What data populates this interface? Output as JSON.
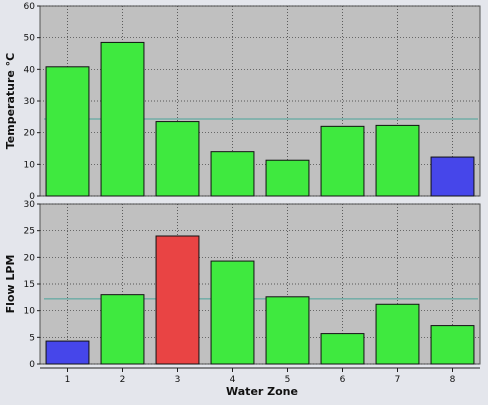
{
  "chart_data": [
    {
      "type": "bar",
      "ylabel": "Temperature °C",
      "xlabel": "",
      "categories": [
        "1",
        "2",
        "3",
        "4",
        "5",
        "6",
        "7",
        "8"
      ],
      "values": [
        40.8,
        48.5,
        23.5,
        14.0,
        11.3,
        22.0,
        22.3,
        12.3
      ],
      "bar_colors": [
        "#3fe93f",
        "#3fe93f",
        "#3fe93f",
        "#3fe93f",
        "#3fe93f",
        "#3fe93f",
        "#3fe93f",
        "#4646ea"
      ],
      "reference_line": 24.3,
      "ylim": [
        0,
        60
      ],
      "yticks": [
        0,
        10,
        20,
        30,
        40,
        50,
        60
      ],
      "grid": true
    },
    {
      "type": "bar",
      "ylabel": "Flow LPM",
      "xlabel": "Water Zone",
      "categories": [
        "1",
        "2",
        "3",
        "4",
        "5",
        "6",
        "7",
        "8"
      ],
      "values": [
        4.3,
        13.0,
        24.0,
        19.3,
        12.6,
        5.7,
        11.2,
        7.2
      ],
      "bar_colors": [
        "#4646ea",
        "#3fe93f",
        "#e94444",
        "#3fe93f",
        "#3fe93f",
        "#3fe93f",
        "#3fe93f",
        "#3fe93f"
      ],
      "reference_line": 12.2,
      "ylim": [
        0,
        30
      ],
      "yticks": [
        0,
        5,
        10,
        15,
        20,
        25,
        30
      ],
      "grid": true
    }
  ],
  "style": {
    "plot_background": "#c0c0c0",
    "page_background": "#e4e6ec",
    "gridline_color": "#333333",
    "reference_line_color": "#4aa39a",
    "bar_edge_color": "#111111"
  }
}
